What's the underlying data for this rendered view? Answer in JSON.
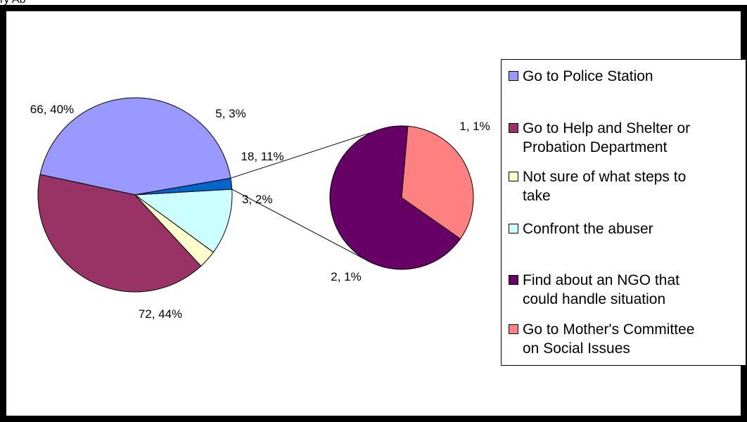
{
  "top_fragment": "ry Ab",
  "chart_data": {
    "type": "pie",
    "subtype": "pie-of-pie",
    "legend_position": "right",
    "slices": [
      {
        "label": "Go to Police Station",
        "value": 72,
        "percent": "44%",
        "color": "#9999FF"
      },
      {
        "label": "Go to Help and Shelter or Probation Department",
        "value": 66,
        "percent": "40%",
        "color": "#993366"
      },
      {
        "label": "Not sure of what steps to take",
        "value": 5,
        "percent": "3%",
        "color": "#FFFFCC"
      },
      {
        "label": "Confront the abuser",
        "value": 18,
        "percent": "11%",
        "color": "#CCFFFF"
      },
      {
        "label": "Other",
        "value": 3,
        "percent": "2%",
        "color": "#0066CC"
      }
    ],
    "secondary_slices": [
      {
        "label": "Find about an NGO that could handle situation",
        "value": 2,
        "percent": "1%",
        "color": "#660066"
      },
      {
        "label": "Go to Mother's Committee on Social Issues",
        "value": 1,
        "percent": "1%",
        "color": "#FF8080"
      }
    ]
  },
  "data_labels": {
    "police": "72, 44%",
    "help": "66, 40%",
    "notsure": "5, 3%",
    "confront": "18, 11%",
    "other": "3, 2%",
    "ngo": "2, 1%",
    "mothers": "1, 1%"
  },
  "legend": [
    {
      "text": "Go to Police Station",
      "color": "#9999FF"
    },
    {
      "text": "Go to Help and Shelter or\nProbation Department",
      "color": "#993366"
    },
    {
      "text": "Not sure of what steps to\ntake",
      "color": "#FFFFCC"
    },
    {
      "text": "Confront the abuser",
      "color": "#CCFFFF"
    },
    {
      "text": "Find about an NGO that\ncould handle situation",
      "color": "#660066"
    },
    {
      "text": "Go to Mother's Committee\non Social Issues",
      "color": "#FF8080"
    }
  ]
}
